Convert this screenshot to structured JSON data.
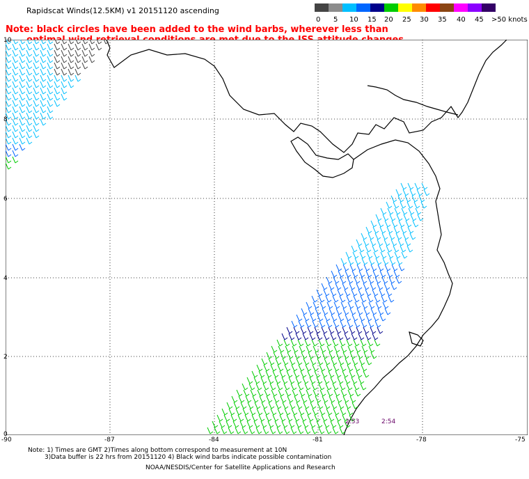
{
  "title": "Rapidscat Winds(12.5KM) v1 20151120 ascending",
  "note": {
    "line1": "Note: black circles have been added to the wind barbs, wherever less than",
    "line2": "optimal wind retrieval conditions are met due to the ISS attitude changes."
  },
  "legend": {
    "labels": [
      "0",
      "5",
      "10",
      "15",
      "20",
      "25",
      "30",
      "35",
      "40",
      "45",
      ">50 knots"
    ],
    "colors": [
      "#444444",
      "#8c8c8c",
      "#00bfff",
      "#0066ff",
      "#00008b",
      "#00cc00",
      "#ffff00",
      "#ff8c00",
      "#ff0000",
      "#8b4513",
      "#ff00ff",
      "#8b00ff",
      "#330066"
    ]
  },
  "axes": {
    "y_ticks": [
      "10",
      "8",
      "6",
      "4",
      "2",
      "0"
    ],
    "x_ticks": [
      "-90",
      "-87",
      "-84",
      "-81",
      "-78",
      "-75"
    ]
  },
  "pass_times": [
    "2:53",
    "2:54"
  ],
  "footnotes": {
    "line1": "Note: 1) Times are GMT 2)Times along bottom correspond to measurement at 10N",
    "line2": "3)Data buffer is 22 hrs from 20151120 4) Black wind barbs indicate possible contamination",
    "line3": "NOAA/NESDIS/Center for Satellite Applications and Research"
  }
}
